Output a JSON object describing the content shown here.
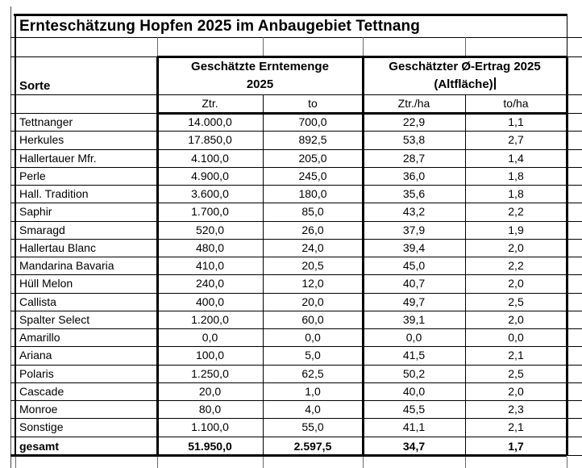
{
  "sheet": {
    "title": "Ernteschätzung Hopfen 2025 im Anbaugebiet Tettnang",
    "table": {
      "sorte_header": "Sorte",
      "group_erntemenge": {
        "line1": "Geschätzte Erntemenge",
        "line2": "2025"
      },
      "group_ertrag": {
        "line1": "Geschätzter Ø-Ertrag 2025",
        "line2": "(Altfläche)"
      },
      "subheaders": {
        "ztr": "Ztr.",
        "to": "to",
        "ztr_ha": "Ztr./ha",
        "to_ha": "to/ha"
      },
      "rows": [
        {
          "sorte": "Tettnanger",
          "ztr": "14.000,0",
          "to": "700,0",
          "ztr_ha": "22,9",
          "to_ha": "1,1"
        },
        {
          "sorte": "Herkules",
          "ztr": "17.850,0",
          "to": "892,5",
          "ztr_ha": "53,8",
          "to_ha": "2,7"
        },
        {
          "sorte": "Hallertauer Mfr.",
          "ztr": "4.100,0",
          "to": "205,0",
          "ztr_ha": "28,7",
          "to_ha": "1,4"
        },
        {
          "sorte": "Perle",
          "ztr": "4.900,0",
          "to": "245,0",
          "ztr_ha": "36,0",
          "to_ha": "1,8"
        },
        {
          "sorte": "Hall. Tradition",
          "ztr": "3.600,0",
          "to": "180,0",
          "ztr_ha": "35,6",
          "to_ha": "1,8"
        },
        {
          "sorte": "Saphir",
          "ztr": "1.700,0",
          "to": "85,0",
          "ztr_ha": "43,2",
          "to_ha": "2,2"
        },
        {
          "sorte": "Smaragd",
          "ztr": "520,0",
          "to": "26,0",
          "ztr_ha": "37,9",
          "to_ha": "1,9"
        },
        {
          "sorte": "Hallertau Blanc",
          "ztr": "480,0",
          "to": "24,0",
          "ztr_ha": "39,4",
          "to_ha": "2,0"
        },
        {
          "sorte": "Mandarina Bavaria",
          "ztr": "410,0",
          "to": "20,5",
          "ztr_ha": "45,0",
          "to_ha": "2,2"
        },
        {
          "sorte": "Hüll Melon",
          "ztr": "240,0",
          "to": "12,0",
          "ztr_ha": "40,7",
          "to_ha": "2,0"
        },
        {
          "sorte": "Callista",
          "ztr": "400,0",
          "to": "20,0",
          "ztr_ha": "49,7",
          "to_ha": "2,5"
        },
        {
          "sorte": "Spalter Select",
          "ztr": "1.200,0",
          "to": "60,0",
          "ztr_ha": "39,1",
          "to_ha": "2,0"
        },
        {
          "sorte": "Amarillo",
          "ztr": "0,0",
          "to": "0,0",
          "ztr_ha": "0,0",
          "to_ha": "0,0"
        },
        {
          "sorte": "Ariana",
          "ztr": "100,0",
          "to": "5,0",
          "ztr_ha": "41,5",
          "to_ha": "2,1"
        },
        {
          "sorte": "Polaris",
          "ztr": "1.250,0",
          "to": "62,5",
          "ztr_ha": "50,2",
          "to_ha": "2,5"
        },
        {
          "sorte": "Cascade",
          "ztr": "20,0",
          "to": "1,0",
          "ztr_ha": "40,0",
          "to_ha": "2,0"
        },
        {
          "sorte": "Monroe",
          "ztr": "80,0",
          "to": "4,0",
          "ztr_ha": "45,5",
          "to_ha": "2,3"
        },
        {
          "sorte": "Sonstige",
          "ztr": "1.100,0",
          "to": "55,0",
          "ztr_ha": "41,1",
          "to_ha": "2,1"
        }
      ],
      "total": {
        "sorte": "gesamt",
        "ztr": "51.950,0",
        "to": "2.597,5",
        "ztr_ha": "34,7",
        "to_ha": "1,7"
      }
    }
  }
}
